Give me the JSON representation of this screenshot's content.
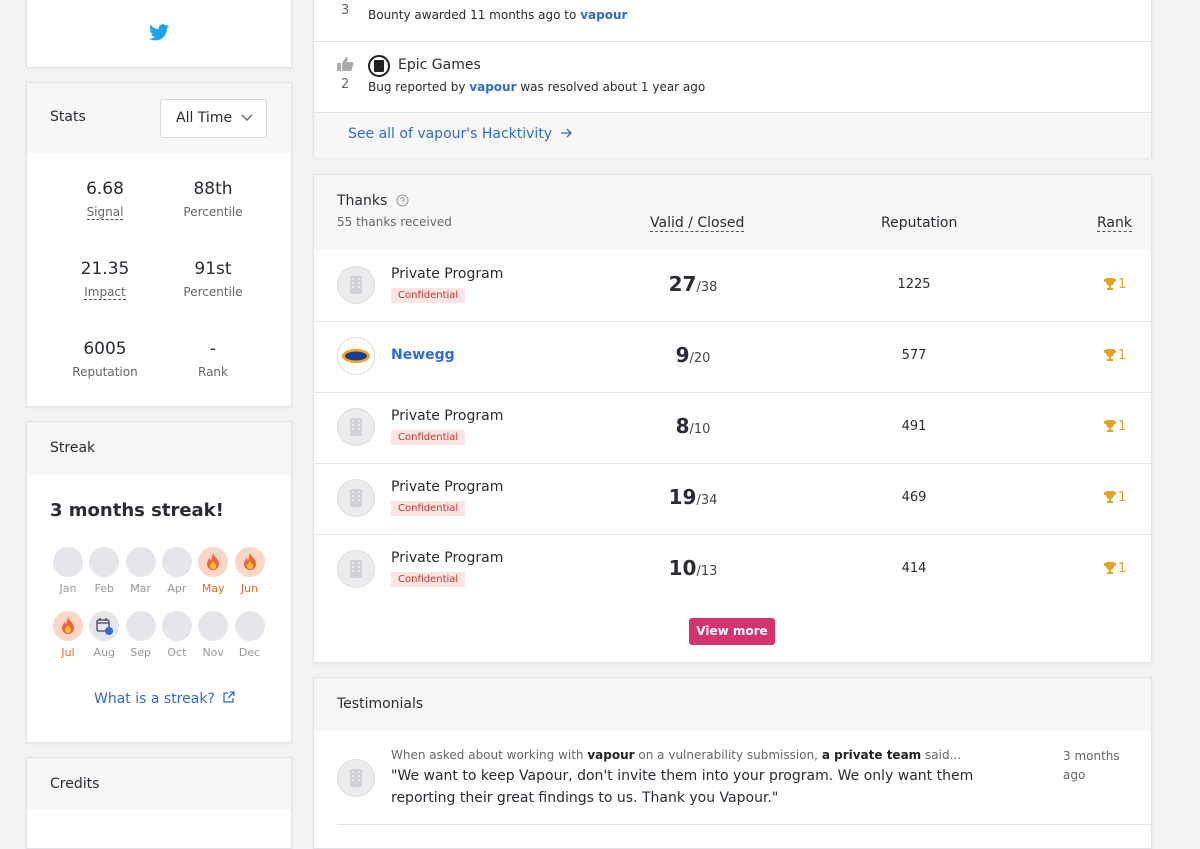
{
  "stats": {
    "title": "Stats",
    "filter": "All Time",
    "items": [
      {
        "value": "6.68",
        "label": "Signal",
        "dashed": true
      },
      {
        "value": "88th",
        "label": "Percentile",
        "dashed": false
      },
      {
        "value": "21.35",
        "label": "Impact",
        "dashed": true
      },
      {
        "value": "91st",
        "label": "Percentile",
        "dashed": false
      },
      {
        "value": "6005",
        "label": "Reputation",
        "dashed": false
      },
      {
        "value": "-",
        "label": "Rank",
        "dashed": false
      }
    ]
  },
  "streak": {
    "title": "Streak",
    "headline": "3 months streak!",
    "months": [
      {
        "name": "Jan",
        "state": "none"
      },
      {
        "name": "Feb",
        "state": "none"
      },
      {
        "name": "Mar",
        "state": "none"
      },
      {
        "name": "Apr",
        "state": "none"
      },
      {
        "name": "May",
        "state": "fire"
      },
      {
        "name": "Jun",
        "state": "fire"
      },
      {
        "name": "Jul",
        "state": "fire"
      },
      {
        "name": "Aug",
        "state": "calendar"
      },
      {
        "name": "Sep",
        "state": "none"
      },
      {
        "name": "Oct",
        "state": "none"
      },
      {
        "name": "Nov",
        "state": "none"
      },
      {
        "name": "Dec",
        "state": "none"
      }
    ],
    "help_link": "What is a streak?"
  },
  "credits": {
    "title": "Credits"
  },
  "hacktivity": {
    "items": [
      {
        "votes": "3",
        "text": "Bounty awarded 11 months ago to",
        "user": "vapour"
      },
      {
        "votes": "2",
        "program": "Epic Games",
        "prefix": "Bug reported by",
        "user": "vapour",
        "suffix": "was resolved about 1 year ago"
      }
    ],
    "see_all": "See all of vapour's Hacktivity"
  },
  "thanks": {
    "title": "Thanks",
    "subtitle": "55 thanks received",
    "columns": [
      "Valid / Closed",
      "Reputation",
      "Rank"
    ],
    "rows": [
      {
        "program": "Private Program",
        "badge": "Confidential",
        "link": false,
        "valid": "27",
        "closed": "/38",
        "reputation": "1225",
        "rank": "1"
      },
      {
        "program": "Newegg",
        "link": true,
        "valid": "9",
        "closed": "/20",
        "reputation": "577",
        "rank": "1"
      },
      {
        "program": "Private Program",
        "badge": "Confidential",
        "link": false,
        "valid": "8",
        "closed": "/10",
        "reputation": "491",
        "rank": "1"
      },
      {
        "program": "Private Program",
        "badge": "Confidential",
        "link": false,
        "valid": "19",
        "closed": "/34",
        "reputation": "469",
        "rank": "1"
      },
      {
        "program": "Private Program",
        "badge": "Confidential",
        "link": false,
        "valid": "10",
        "closed": "/13",
        "reputation": "414",
        "rank": "1"
      }
    ],
    "view_more": "View more"
  },
  "testimonials": {
    "title": "Testimonials",
    "items": [
      {
        "intro_start": "When asked about working with",
        "user": "vapour",
        "intro_mid": "on a vulnerability submission,",
        "team": "a private team",
        "intro_end": "said...",
        "quote": "\"We want to keep Vapour, don't invite them into your program. We only want them reporting their great findings to us. Thank you Vapour.\"",
        "time": "3 months ago"
      }
    ]
  }
}
